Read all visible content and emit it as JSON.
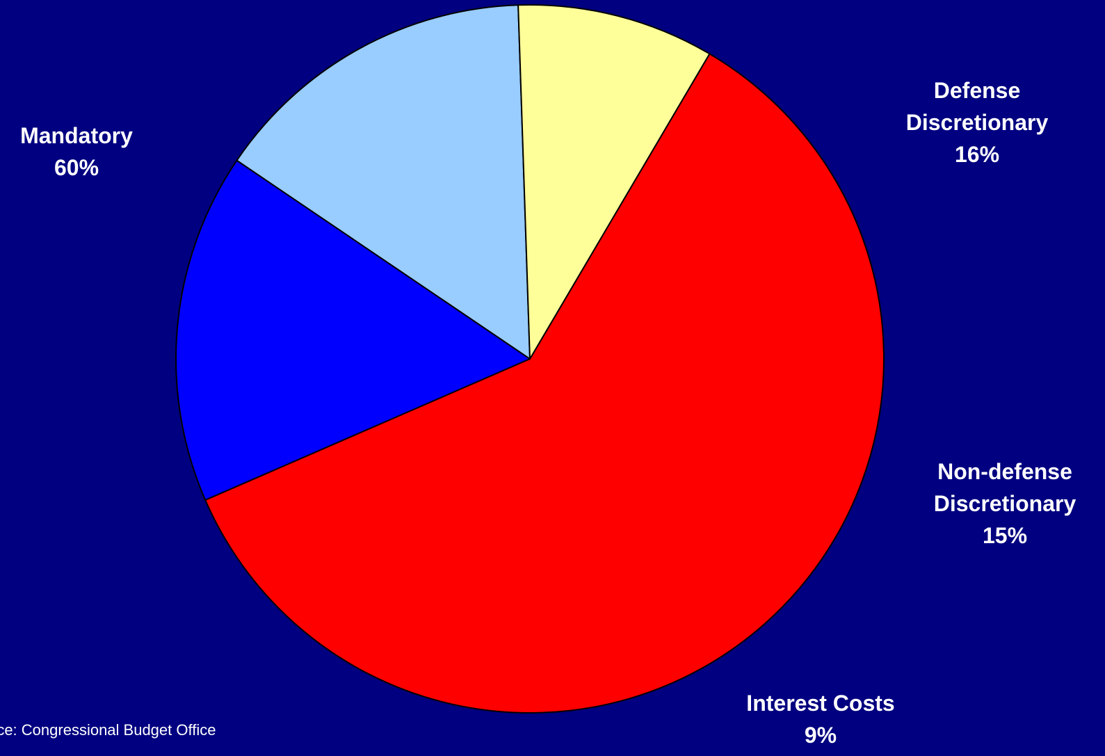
{
  "chart_data": {
    "type": "pie",
    "slices": [
      {
        "label_lines": [
          "Mandatory"
        ],
        "value": 60,
        "value_label": "60%",
        "color": "#ff0000"
      },
      {
        "label_lines": [
          "Defense",
          "Discretionary"
        ],
        "value": 16,
        "value_label": "16%",
        "color": "#0000ff"
      },
      {
        "label_lines": [
          "Non-defense",
          "Discretionary"
        ],
        "value": 15,
        "value_label": "15%",
        "color": "#99ccff"
      },
      {
        "label_lines": [
          "Interest Costs"
        ],
        "value": 9,
        "value_label": "9%",
        "color": "#ffff99"
      }
    ],
    "background_color": "#000080",
    "outline_color": "#000000",
    "label_color": "#ffffff"
  },
  "source": "rce:  Congressional Budget Office"
}
